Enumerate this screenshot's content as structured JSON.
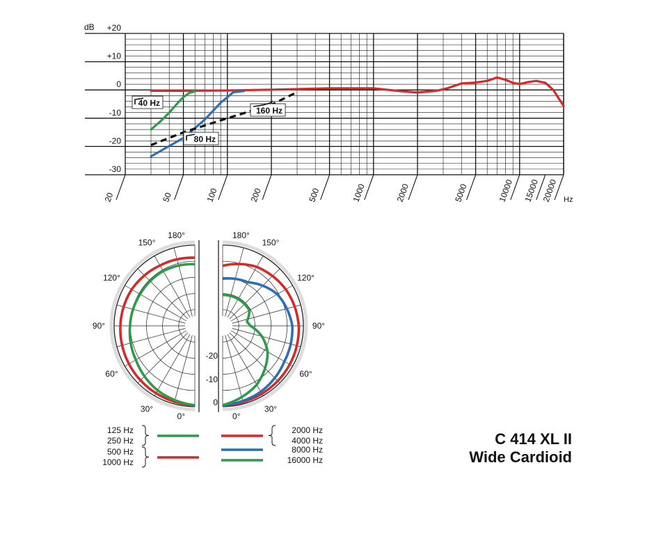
{
  "colors": {
    "red": "#d42a2a",
    "green": "#2e9a4a",
    "blue": "#2c6fb5",
    "black": "#111111",
    "grid": "#111111"
  },
  "chart_data": [
    {
      "type": "line",
      "title": "",
      "xlabel": "Hz",
      "ylabel": "dB",
      "x_scale": "log",
      "xlim": [
        20,
        20000
      ],
      "ylim": [
        -30,
        20
      ],
      "x_ticks": [
        {
          "v": 20,
          "label": "20"
        },
        {
          "v": 50,
          "label": "50"
        },
        {
          "v": 100,
          "label": "100"
        },
        {
          "v": 200,
          "label": "200"
        },
        {
          "v": 500,
          "label": "500"
        },
        {
          "v": 1000,
          "label": "1000"
        },
        {
          "v": 2000,
          "label": "2000"
        },
        {
          "v": 5000,
          "label": "5000"
        },
        {
          "v": 10000,
          "label": "10000"
        },
        {
          "v": 15000,
          "label": "15000"
        },
        {
          "v": 20000,
          "label": "20000"
        }
      ],
      "y_ticks": [
        {
          "v": 20,
          "label": "+20"
        },
        {
          "v": 10,
          "label": "+10"
        },
        {
          "v": 0,
          "label": "0"
        },
        {
          "v": -10,
          "label": "-10"
        },
        {
          "v": -20,
          "label": "-20"
        },
        {
          "v": -30,
          "label": "-30"
        }
      ],
      "grid": true,
      "series": [
        {
          "color": "red",
          "dash": false,
          "points": [
            [
              30,
              -0.3
            ],
            [
              50,
              -0.3
            ],
            [
              100,
              -0.2
            ],
            [
              200,
              0.1
            ],
            [
              500,
              0.6
            ],
            [
              1000,
              0.6
            ],
            [
              1500,
              -0.4
            ],
            [
              2000,
              -0.9
            ],
            [
              2700,
              -0.3
            ],
            [
              3200,
              0.6
            ],
            [
              4000,
              2.3
            ],
            [
              5000,
              2.6
            ],
            [
              6000,
              3.2
            ],
            [
              7000,
              4.4
            ],
            [
              8000,
              3.6
            ],
            [
              9000,
              2.5
            ],
            [
              10000,
              2.1
            ],
            [
              11500,
              2.8
            ],
            [
              13000,
              3.2
            ],
            [
              15000,
              2.5
            ],
            [
              17000,
              0
            ],
            [
              20000,
              -5.7
            ]
          ]
        },
        {
          "color": "green",
          "dash": false,
          "points": [
            [
              30,
              -14
            ],
            [
              35,
              -11
            ],
            [
              40,
              -8
            ],
            [
              45,
              -5
            ],
            [
              50,
              -2.5
            ],
            [
              55,
              -1
            ],
            [
              60,
              -0.5
            ]
          ]
        },
        {
          "color": "blue",
          "dash": false,
          "points": [
            [
              30,
              -23.5
            ],
            [
              50,
              -17
            ],
            [
              70,
              -10.5
            ],
            [
              90,
              -4.5
            ],
            [
              110,
              -0.8
            ],
            [
              130,
              -0.4
            ]
          ]
        },
        {
          "color": "black",
          "dash": true,
          "points": [
            [
              30,
              -19.5
            ],
            [
              50,
              -15
            ],
            [
              100,
              -10
            ],
            [
              200,
              -5.2
            ],
            [
              300,
              -0.8
            ]
          ]
        }
      ],
      "filter_labels": [
        {
          "text": "40 Hz"
        },
        {
          "text": "80 Hz"
        },
        {
          "text": "160 Hz"
        }
      ]
    },
    {
      "type": "polar",
      "angle_labels": [
        "180°",
        "150°",
        "120°",
        "90°",
        "60°",
        "30°",
        "0°"
      ],
      "radial_labels": [
        "-20",
        "-10",
        "0"
      ],
      "left_half": [
        {
          "color": "red",
          "pts": [
            [
              0,
              0
            ],
            [
              30,
              -0.5
            ],
            [
              60,
              -1
            ],
            [
              90,
              -1.5
            ],
            [
              120,
              -2
            ],
            [
              150,
              -3
            ],
            [
              180,
              -3.5
            ]
          ]
        },
        {
          "color": "green",
          "pts": [
            [
              0,
              0
            ],
            [
              30,
              -1.5
            ],
            [
              60,
              -3.5
            ],
            [
              90,
              -4.5
            ],
            [
              120,
              -5
            ],
            [
              150,
              -5
            ],
            [
              180,
              -5.5
            ]
          ]
        }
      ],
      "right_half": [
        {
          "color": "red",
          "pts": [
            [
              0,
              0
            ],
            [
              30,
              -0.3
            ],
            [
              60,
              -0.6
            ],
            [
              90,
              -1
            ],
            [
              120,
              -2
            ],
            [
              150,
              -3.5
            ],
            [
              180,
              -6
            ]
          ]
        },
        {
          "color": "blue",
          "pts": [
            [
              0,
              0
            ],
            [
              30,
              -1
            ],
            [
              60,
              -2.5
            ],
            [
              90,
              -3
            ],
            [
              120,
              -5
            ],
            [
              150,
              -9
            ],
            [
              180,
              -10
            ]
          ]
        },
        {
          "color": "green",
          "pts": [
            [
              0,
              0
            ],
            [
              30,
              -3.5
            ],
            [
              45,
              -6
            ],
            [
              60,
              -8.5
            ],
            [
              75,
              -12
            ],
            [
              90,
              -16
            ],
            [
              100,
              -17
            ],
            [
              120,
              -15
            ],
            [
              150,
              -15
            ],
            [
              180,
              -15
            ]
          ]
        }
      ],
      "legend_left": [
        {
          "lines": [
            "125 Hz",
            "250 Hz"
          ],
          "color": "green"
        },
        {
          "lines": [
            "500 Hz",
            "1000 Hz"
          ],
          "color": "red"
        }
      ],
      "legend_right": [
        {
          "lines": [
            "2000 Hz",
            "4000 Hz"
          ],
          "color": "red"
        },
        {
          "lines": [
            "8000 Hz"
          ],
          "color": "blue"
        },
        {
          "lines": [
            "16000 Hz"
          ],
          "color": "green"
        }
      ]
    }
  ],
  "product": {
    "model": "C 414 XL II",
    "pattern": "Wide Cardioid"
  }
}
